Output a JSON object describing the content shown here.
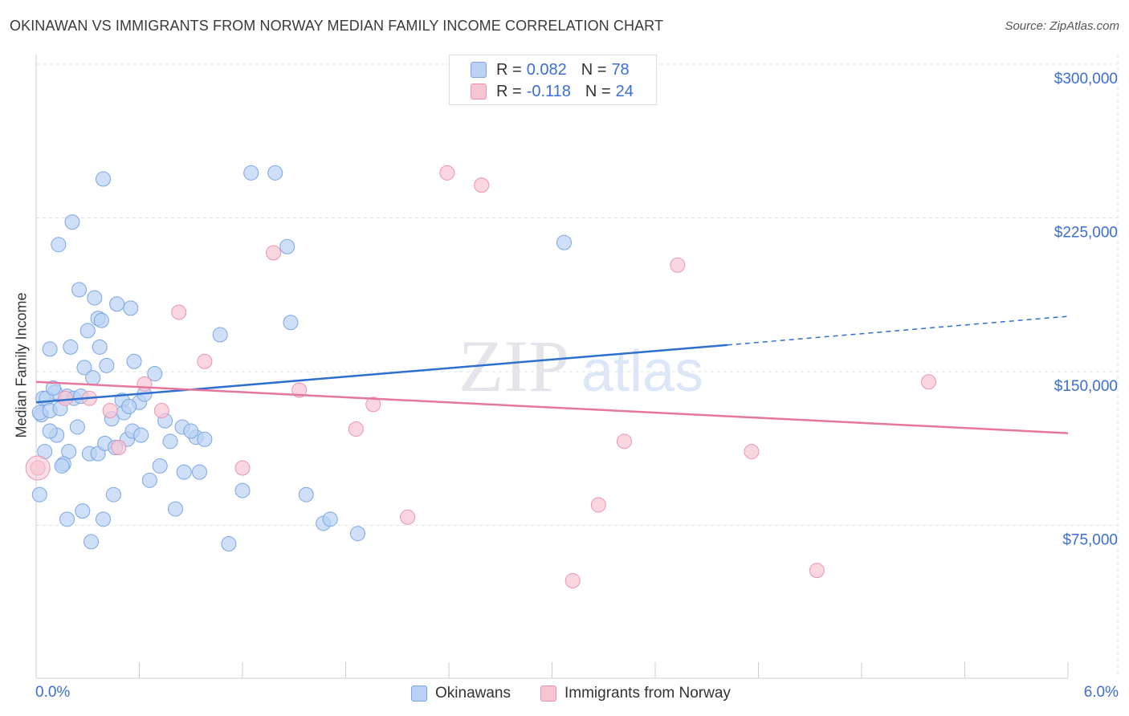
{
  "title": "OKINAWAN VS IMMIGRANTS FROM NORWAY MEDIAN FAMILY INCOME CORRELATION CHART",
  "source": "Source: ZipAtlas.com",
  "watermark": {
    "zip": "ZIP",
    "atlas": "atlas"
  },
  "legend_top": [
    {
      "r_label": "R =",
      "r_value": "0.082",
      "n_label": "N =",
      "n_value": "78"
    },
    {
      "r_label": "R =",
      "r_value": "-0.118",
      "n_label": "N =",
      "n_value": "24"
    }
  ],
  "colors": {
    "blue_fill": "#b9d2f3",
    "blue_stroke": "#7aa6e6",
    "blue_line": "#2f6fce",
    "pink_fill": "#f7c4d3",
    "pink_stroke": "#ec93ae",
    "pink_line": "#e5779c",
    "grid": "#dde0e6",
    "axis_text": "#3b6ed0"
  },
  "chart_data": {
    "type": "scatter",
    "title": "OKINAWAN VS IMMIGRANTS FROM NORWAY MEDIAN FAMILY INCOME CORRELATION CHART",
    "xlabel": "",
    "ylabel": "Median Family Income",
    "xlim": [
      0,
      6
    ],
    "ylim": [
      0,
      300000
    ],
    "x_tick_labels": [
      "0.0%",
      "6.0%"
    ],
    "y_ticks": [
      75000,
      150000,
      225000,
      300000
    ],
    "y_tick_labels": [
      "$75,000",
      "$150,000",
      "$225,000",
      "$300,000"
    ],
    "grid": true,
    "series": [
      {
        "name": "Okinawans",
        "r": 0.082,
        "n": 78,
        "trend": {
          "x0": 0,
          "y0": 135000,
          "x1": 4.02,
          "y1": 163000,
          "dash_x1": 6.0,
          "dash_y1": 177000
        },
        "points": [
          [
            0.39,
            244000
          ],
          [
            0.21,
            223000
          ],
          [
            0.13,
            212000
          ],
          [
            0.05,
            111000
          ],
          [
            0.08,
            161000
          ],
          [
            0.03,
            129000
          ],
          [
            0.11,
            140000
          ],
          [
            0.28,
            152000
          ],
          [
            0.2,
            162000
          ],
          [
            0.25,
            190000
          ],
          [
            0.3,
            170000
          ],
          [
            0.34,
            186000
          ],
          [
            0.36,
            176000
          ],
          [
            0.38,
            175000
          ],
          [
            0.41,
            153000
          ],
          [
            0.47,
            183000
          ],
          [
            0.5,
            136000
          ],
          [
            0.55,
            181000
          ],
          [
            0.57,
            155000
          ],
          [
            0.6,
            135000
          ],
          [
            0.63,
            139000
          ],
          [
            0.69,
            149000
          ],
          [
            0.75,
            126000
          ],
          [
            0.78,
            116000
          ],
          [
            0.81,
            83000
          ],
          [
            0.86,
            101000
          ],
          [
            0.93,
            118000
          ],
          [
            0.98,
            117000
          ],
          [
            1.07,
            168000
          ],
          [
            1.12,
            66000
          ],
          [
            1.2,
            92000
          ],
          [
            1.25,
            247000
          ],
          [
            1.39,
            247000
          ],
          [
            1.46,
            211000
          ],
          [
            1.48,
            174000
          ],
          [
            1.57,
            90000
          ],
          [
            1.67,
            76000
          ],
          [
            1.71,
            78000
          ],
          [
            1.87,
            71000
          ],
          [
            3.07,
            213000
          ],
          [
            0.02,
            130000
          ],
          [
            0.04,
            137000
          ],
          [
            0.06,
            137000
          ],
          [
            0.08,
            131000
          ],
          [
            0.1,
            142000
          ],
          [
            0.14,
            132000
          ],
          [
            0.18,
            138000
          ],
          [
            0.22,
            137000
          ],
          [
            0.24,
            123000
          ],
          [
            0.12,
            119000
          ],
          [
            0.19,
            111000
          ],
          [
            0.26,
            138000
          ],
          [
            0.31,
            110000
          ],
          [
            0.36,
            110000
          ],
          [
            0.4,
            115000
          ],
          [
            0.44,
            127000
          ],
          [
            0.46,
            113000
          ],
          [
            0.51,
            130000
          ],
          [
            0.53,
            117000
          ],
          [
            0.56,
            121000
          ],
          [
            0.61,
            119000
          ],
          [
            0.66,
            97000
          ],
          [
            0.72,
            104000
          ],
          [
            0.85,
            123000
          ],
          [
            0.9,
            121000
          ],
          [
            0.95,
            101000
          ],
          [
            0.37,
            162000
          ],
          [
            0.33,
            147000
          ],
          [
            0.45,
            90000
          ],
          [
            0.39,
            78000
          ],
          [
            0.54,
            133000
          ],
          [
            0.18,
            78000
          ],
          [
            0.27,
            82000
          ],
          [
            0.16,
            105000
          ],
          [
            0.02,
            90000
          ],
          [
            0.15,
            104000
          ],
          [
            0.08,
            121000
          ],
          [
            0.32,
            67000
          ]
        ]
      },
      {
        "name": "Immigrants from Norway",
        "r": -0.118,
        "n": 24,
        "trend": {
          "x0": 0,
          "y0": 145000,
          "x1": 6.0,
          "y1": 120000
        },
        "points": [
          [
            0.01,
            103000
          ],
          [
            0.17,
            137000
          ],
          [
            0.31,
            137000
          ],
          [
            0.43,
            131000
          ],
          [
            0.48,
            113000
          ],
          [
            0.63,
            144000
          ],
          [
            0.73,
            131000
          ],
          [
            0.83,
            179000
          ],
          [
            0.98,
            155000
          ],
          [
            1.2,
            103000
          ],
          [
            1.38,
            208000
          ],
          [
            1.53,
            141000
          ],
          [
            1.86,
            122000
          ],
          [
            1.96,
            134000
          ],
          [
            2.16,
            79000
          ],
          [
            2.39,
            247000
          ],
          [
            2.59,
            241000
          ],
          [
            3.12,
            48000
          ],
          [
            3.27,
            85000
          ],
          [
            3.42,
            116000
          ],
          [
            3.73,
            202000
          ],
          [
            4.16,
            111000
          ],
          [
            4.54,
            53000
          ],
          [
            5.19,
            145000
          ]
        ]
      }
    ]
  },
  "bottom_legend": [
    {
      "label": "Okinawans"
    },
    {
      "label": "Immigrants from Norway"
    }
  ]
}
